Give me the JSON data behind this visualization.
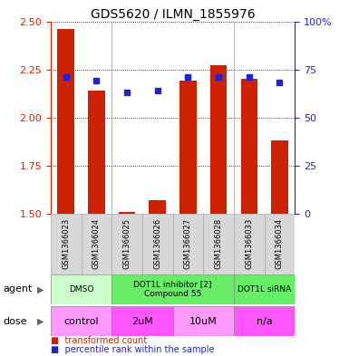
{
  "title": "GDS5620 / ILMN_1855976",
  "samples": [
    "GSM1366023",
    "GSM1366024",
    "GSM1366025",
    "GSM1366026",
    "GSM1366027",
    "GSM1366028",
    "GSM1366033",
    "GSM1366034"
  ],
  "bar_values": [
    2.46,
    2.14,
    1.51,
    1.57,
    2.19,
    2.27,
    2.2,
    1.88
  ],
  "dot_values": [
    2.21,
    2.19,
    2.13,
    2.14,
    2.21,
    2.21,
    2.21,
    2.18
  ],
  "ylim": [
    1.5,
    2.5
  ],
  "yticks_left": [
    1.5,
    1.75,
    2.0,
    2.25,
    2.5
  ],
  "yticks_right": [
    0,
    25,
    50,
    75,
    100
  ],
  "bar_color": "#cc2200",
  "dot_color": "#2222cc",
  "agent_groups": [
    {
      "label": "DMSO",
      "start": 0,
      "end": 2,
      "color": "#ccffcc"
    },
    {
      "label": "DOT1L inhibitor [2]\nCompound 55",
      "start": 2,
      "end": 6,
      "color": "#66ee66"
    },
    {
      "label": "DOT1L siRNA",
      "start": 6,
      "end": 8,
      "color": "#66ee66"
    }
  ],
  "dose_groups": [
    {
      "label": "control",
      "start": 0,
      "end": 2,
      "color": "#ff99ff"
    },
    {
      "label": "2uM",
      "start": 2,
      "end": 4,
      "color": "#ff55ff"
    },
    {
      "label": "10uM",
      "start": 4,
      "end": 6,
      "color": "#ff99ff"
    },
    {
      "label": "n/a",
      "start": 6,
      "end": 8,
      "color": "#ff55ff"
    }
  ],
  "legend_items": [
    {
      "label": "transformed count",
      "color": "#cc2200",
      "marker": "s"
    },
    {
      "label": "percentile rank within the sample",
      "color": "#2222cc",
      "marker": "s"
    }
  ],
  "bar_width": 0.55,
  "background_color": "#ffffff",
  "grid_color": "#000000",
  "axis_color_left": "#cc2200",
  "axis_color_right": "#2222cc",
  "sample_box_color": "#d8d8d8",
  "sample_box_edge": "#aaaaaa"
}
